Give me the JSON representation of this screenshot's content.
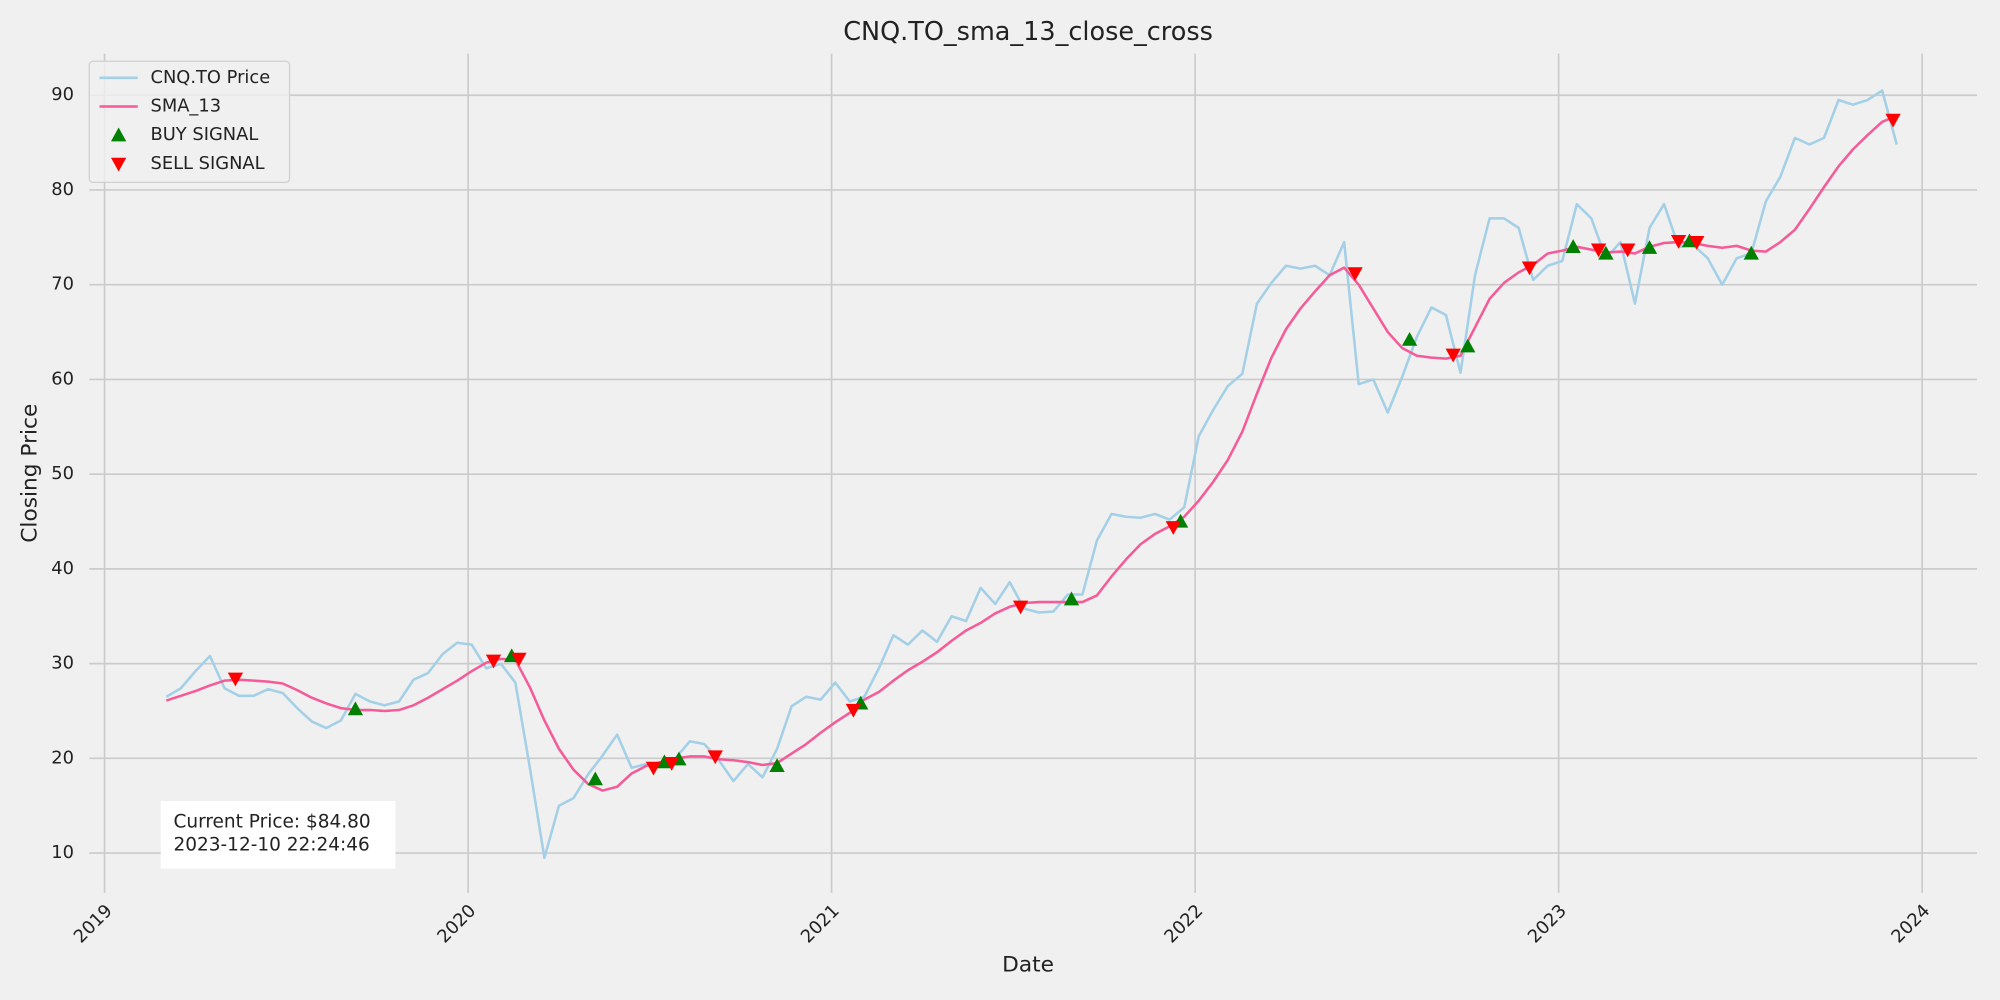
{
  "chart_data": {
    "type": "line",
    "title": "CNQ.TO_sma_13_close_cross",
    "x_label": "Date",
    "y_label": "Closing Price",
    "xlim": [
      2018.958,
      2024.151
    ],
    "xticks": [
      2019,
      2020,
      2021,
      2022,
      2023,
      2024
    ],
    "ylim": [
      5.8,
      94.4
    ],
    "yticks": [
      10,
      20,
      30,
      40,
      50,
      60,
      70,
      80,
      90
    ],
    "grid": true,
    "legend": "upper left",
    "annotation": [
      "Current Price: $84.80",
      "2023-12-10 22:24:46"
    ],
    "series": [
      {
        "name": "CNQ.TO Price",
        "color": "#a3d0e6",
        "style": "line",
        "x": [
          2019.17,
          2019.21,
          2019.25,
          2019.29,
          2019.33,
          2019.37,
          2019.41,
          2019.45,
          2019.49,
          2019.53,
          2019.57,
          2019.61,
          2019.65,
          2019.69,
          2019.73,
          2019.77,
          2019.81,
          2019.85,
          2019.89,
          2019.93,
          2019.97,
          2020.01,
          2020.05,
          2020.09,
          2020.13,
          2020.17,
          2020.21,
          2020.25,
          2020.29,
          2020.33,
          2020.37,
          2020.41,
          2020.45,
          2020.49,
          2020.53,
          2020.57,
          2020.61,
          2020.65,
          2020.69,
          2020.73,
          2020.77,
          2020.81,
          2020.85,
          2020.89,
          2020.93,
          2020.97,
          2021.01,
          2021.05,
          2021.09,
          2021.13,
          2021.17,
          2021.21,
          2021.25,
          2021.29,
          2021.33,
          2021.37,
          2021.41,
          2021.45,
          2021.49,
          2021.53,
          2021.57,
          2021.61,
          2021.65,
          2021.69,
          2021.73,
          2021.77,
          2021.81,
          2021.85,
          2021.89,
          2021.93,
          2021.97,
          2022.01,
          2022.05,
          2022.09,
          2022.13,
          2022.17,
          2022.21,
          2022.25,
          2022.29,
          2022.33,
          2022.37,
          2022.41,
          2022.45,
          2022.49,
          2022.53,
          2022.57,
          2022.61,
          2022.65,
          2022.69,
          2022.73,
          2022.77,
          2022.81,
          2022.85,
          2022.89,
          2022.93,
          2022.97,
          2023.01,
          2023.05,
          2023.09,
          2023.13,
          2023.17,
          2023.21,
          2023.25,
          2023.29,
          2023.33,
          2023.37,
          2023.41,
          2023.45,
          2023.49,
          2023.53,
          2023.57,
          2023.61,
          2023.65,
          2023.69,
          2023.73,
          2023.77,
          2023.81,
          2023.85,
          2023.89,
          2023.93
        ],
        "values": [
          26.5,
          27.4,
          29.2,
          30.8,
          27.4,
          26.6,
          26.6,
          27.3,
          26.9,
          25.3,
          23.9,
          23.2,
          24,
          26.8,
          26,
          25.6,
          26,
          28.3,
          29,
          31,
          32.2,
          32,
          29.5,
          30,
          28,
          19,
          9.5,
          15,
          15.8,
          18.3,
          20.3,
          22.5,
          19,
          19.4,
          19.4,
          20,
          21.8,
          21.5,
          19.8,
          17.6,
          19.4,
          18,
          21,
          25.5,
          26.5,
          26.2,
          28,
          26,
          26.5,
          29.5,
          33,
          32,
          33.5,
          32.3,
          35,
          34.5,
          38,
          36.3,
          38.6,
          35.8,
          35.4,
          35.5,
          37.3,
          37.3,
          43,
          45.8,
          45.5,
          45.4,
          45.8,
          45.2,
          46.5,
          54,
          56.8,
          59.3,
          60.6,
          68,
          70.2,
          72,
          71.7,
          72,
          71,
          74.5,
          59.5,
          60,
          56.5,
          60.3,
          64.5,
          67.6,
          66.8,
          60.7,
          71,
          77,
          77,
          76,
          70.5,
          72,
          72.5,
          78.5,
          77,
          72.8,
          74.5,
          68,
          76,
          78.5,
          74,
          74.2,
          72.8,
          70,
          72.8,
          73.3,
          78.8,
          81.4,
          85.5,
          84.8,
          85.5,
          89.5,
          89,
          89.5,
          90.5,
          84.8
        ]
      },
      {
        "name": "SMA_13",
        "color": "#f45b98",
        "style": "line",
        "x": [
          2019.17,
          2019.21,
          2019.25,
          2019.29,
          2019.33,
          2019.37,
          2019.41,
          2019.45,
          2019.49,
          2019.53,
          2019.57,
          2019.61,
          2019.65,
          2019.69,
          2019.73,
          2019.77,
          2019.81,
          2019.85,
          2019.89,
          2019.93,
          2019.97,
          2020.01,
          2020.05,
          2020.09,
          2020.13,
          2020.17,
          2020.21,
          2020.25,
          2020.29,
          2020.33,
          2020.37,
          2020.41,
          2020.45,
          2020.49,
          2020.53,
          2020.57,
          2020.61,
          2020.65,
          2020.69,
          2020.73,
          2020.77,
          2020.81,
          2020.85,
          2020.89,
          2020.93,
          2020.97,
          2021.01,
          2021.05,
          2021.09,
          2021.13,
          2021.17,
          2021.21,
          2021.25,
          2021.29,
          2021.33,
          2021.37,
          2021.41,
          2021.45,
          2021.49,
          2021.53,
          2021.57,
          2021.61,
          2021.65,
          2021.69,
          2021.73,
          2021.77,
          2021.81,
          2021.85,
          2021.89,
          2021.93,
          2021.97,
          2022.01,
          2022.05,
          2022.09,
          2022.13,
          2022.17,
          2022.21,
          2022.25,
          2022.29,
          2022.33,
          2022.37,
          2022.41,
          2022.45,
          2022.49,
          2022.53,
          2022.57,
          2022.61,
          2022.65,
          2022.69,
          2022.73,
          2022.77,
          2022.81,
          2022.85,
          2022.89,
          2022.93,
          2022.97,
          2023.01,
          2023.05,
          2023.09,
          2023.13,
          2023.17,
          2023.21,
          2023.25,
          2023.29,
          2023.33,
          2023.37,
          2023.41,
          2023.45,
          2023.49,
          2023.53,
          2023.57,
          2023.61,
          2023.65,
          2023.69,
          2023.73,
          2023.77,
          2023.81,
          2023.85,
          2023.89,
          2023.93
        ],
        "values": [
          26.1,
          26.6,
          27.1,
          27.7,
          28.2,
          28.3,
          28.2,
          28.1,
          27.9,
          27.2,
          26.4,
          25.8,
          25.3,
          25.1,
          25.1,
          25.0,
          25.1,
          25.6,
          26.4,
          27.3,
          28.2,
          29.2,
          30.1,
          30.5,
          30.4,
          27.5,
          24,
          21,
          18.8,
          17.3,
          16.6,
          17,
          18.4,
          19.2,
          19.6,
          20,
          20.2,
          20.2,
          19.9,
          19.8,
          19.6,
          19.3,
          19.5,
          20.5,
          21.5,
          22.7,
          23.8,
          24.8,
          26.2,
          27,
          28.2,
          29.3,
          30.2,
          31.2,
          32.4,
          33.5,
          34.3,
          35.3,
          36,
          36.4,
          36.5,
          36.5,
          36.5,
          36.5,
          37.2,
          39.2,
          41,
          42.6,
          43.7,
          44.5,
          45.5,
          47.2,
          49.2,
          51.5,
          54.5,
          58.5,
          62.3,
          65.3,
          67.5,
          69.3,
          71,
          71.8,
          70,
          67.5,
          65,
          63.3,
          62.5,
          62.3,
          62.2,
          62.5,
          65.5,
          68.5,
          70.2,
          71.3,
          72.1,
          73.3,
          73.6,
          74,
          73.7,
          73.4,
          73.5,
          73.3,
          74,
          74.4,
          74.5,
          74.4,
          74.1,
          73.9,
          74.1,
          73.6,
          73.5,
          74.5,
          75.8,
          78,
          80.3,
          82.5,
          84.3,
          85.8,
          87.2,
          87.8
        ]
      },
      {
        "name": "BUY SIGNAL",
        "color": "#008000",
        "style": "triangle-up",
        "x": [
          2019.69,
          2020.12,
          2020.35,
          2020.54,
          2020.58,
          2020.85,
          2021.08,
          2021.66,
          2021.96,
          2022.59,
          2022.75,
          2023.04,
          2023.13,
          2023.25,
          2023.36,
          2023.53
        ],
        "values": [
          25.2,
          30.8,
          17.8,
          19.6,
          19.9,
          19.2,
          25.8,
          36.8,
          45,
          64.2,
          63.5,
          74,
          73.3,
          73.9,
          74.6,
          73.3
        ]
      },
      {
        "name": "SELL SIGNAL",
        "color": "#ff0000",
        "style": "triangle-down",
        "x": [
          2019.36,
          2020.07,
          2020.14,
          2020.51,
          2020.56,
          2020.68,
          2021.06,
          2021.52,
          2021.94,
          2022.44,
          2022.71,
          2022.92,
          2023.11,
          2023.19,
          2023.33,
          2023.38,
          2023.92
        ],
        "values": [
          28.4,
          30.3,
          30.5,
          19,
          19.5,
          20.2,
          25.1,
          36,
          44.4,
          71.2,
          62.6,
          71.8,
          73.7,
          73.7,
          74.6,
          74.5,
          87.4
        ]
      }
    ]
  }
}
